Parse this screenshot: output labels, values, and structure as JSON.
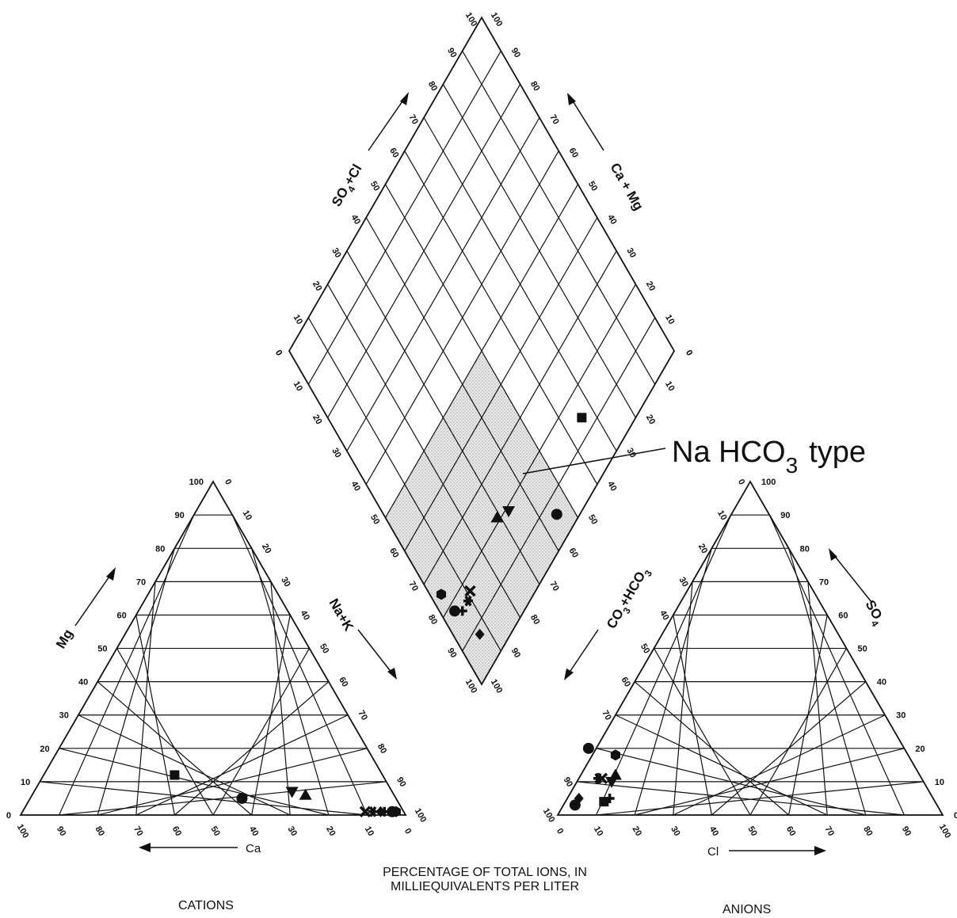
{
  "chart_data": {
    "type": "piper",
    "caption_line1": "PERCENTAGE OF TOTAL IONS, IN",
    "caption_line2": "MILLIEQUIVALENTS PER LITER",
    "cations": {
      "name": "CATIONS",
      "bottom_axis": "Ca",
      "left_axis": "Mg",
      "right_axis": "Na+K",
      "ticks": [
        0,
        10,
        20,
        30,
        40,
        50,
        60,
        70,
        80,
        90,
        100
      ],
      "ticks_desc": [
        "100",
        "90",
        "80",
        "70",
        "60",
        "50",
        "40",
        "30",
        "20",
        "10",
        "0"
      ]
    },
    "anions": {
      "name": "ANIONS",
      "bottom_axis": "Cl",
      "right_axis_main": "SO",
      "right_axis_sub": "4",
      "left_axis_main": "CO",
      "left_axis_sub": "3",
      "left_axis_rest": "+HCO",
      "left_axis_sub2": "3"
    },
    "diamond": {
      "left_top_main": "SO",
      "left_top_sub": "4",
      "left_top_rest": "+Cl",
      "right_top": "Ca + Mg",
      "annotation_main": "Na HCO",
      "annotation_sub": "3",
      "annotation_rest": "type",
      "shaded_region": {
        "na_k_min": 50,
        "na_k_max": 100,
        "co3_hco3_min": 50,
        "co3_hco3_max": 100
      }
    },
    "samples": [
      {
        "marker": "square",
        "cation": {
          "Ca": 54,
          "Mg": 12,
          "NaK": 34
        },
        "anion": {
          "CO3HCO3": 86,
          "SO4": 4,
          "Cl": 10
        }
      },
      {
        "marker": "circle",
        "cation": {
          "Ca": 40,
          "Mg": 5,
          "NaK": 55
        },
        "anion": {
          "CO3HCO3": 94,
          "SO4": 3,
          "Cl": 3
        }
      },
      {
        "marker": "triangle-down",
        "cation": {
          "Ca": 26,
          "Mg": 7,
          "NaK": 67
        },
        "anion": {
          "CO3HCO3": 81,
          "SO4": 10,
          "Cl": 9
        }
      },
      {
        "marker": "triangle-up",
        "cation": {
          "Ca": 23,
          "Mg": 6,
          "NaK": 71
        },
        "anion": {
          "CO3HCO3": 79,
          "SO4": 12,
          "Cl": 9
        }
      },
      {
        "marker": "hexagon",
        "cation": {
          "Ca": 2,
          "Mg": 1,
          "NaK": 97
        },
        "anion": {
          "CO3HCO3": 76,
          "SO4": 18,
          "Cl": 6
        }
      },
      {
        "marker": "dot",
        "cation": {
          "Ca": 3,
          "Mg": 1,
          "NaK": 96
        },
        "anion": {
          "CO3HCO3": 82,
          "SO4": 20,
          "Cl": -2
        }
      },
      {
        "marker": "asterisk",
        "cation": {
          "Ca": 8,
          "Mg": 1,
          "NaK": 91
        },
        "anion": {
          "CO3HCO3": 84,
          "SO4": 11,
          "Cl": 5
        }
      },
      {
        "marker": "cross",
        "cation": {
          "Ca": 10,
          "Mg": 1,
          "NaK": 89
        },
        "anion": {
          "CO3HCO3": 83,
          "SO4": 11,
          "Cl": 6
        }
      },
      {
        "marker": "plus",
        "cation": {
          "Ca": 5,
          "Mg": 1,
          "NaK": 94
        },
        "anion": {
          "CO3HCO3": 84,
          "SO4": 5,
          "Cl": 11
        }
      },
      {
        "marker": "diamond",
        "cation": {
          "Ca": 6,
          "Mg": 1,
          "NaK": 93
        },
        "anion": {
          "CO3HCO3": 92,
          "SO4": 5,
          "Cl": 3
        }
      }
    ]
  }
}
